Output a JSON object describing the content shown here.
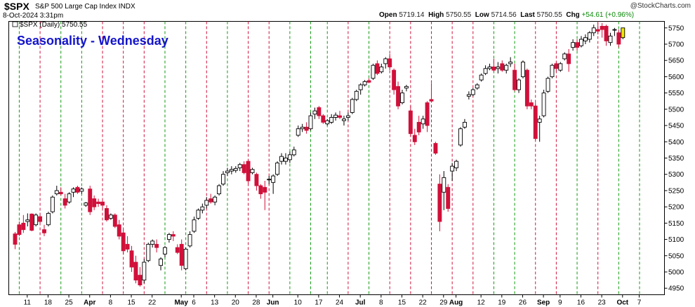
{
  "header": {
    "ticker": "$SPX",
    "name": "S&P 500 Large Cap Index  INDX",
    "date": "8-Oct-2024 3:31pm",
    "open_label": "Open",
    "open": "5719.14",
    "high_label": "High",
    "high": "5750.55",
    "low_label": "Low",
    "low": "5714.56",
    "last_label": "Last",
    "last": "5750.55",
    "chg_label": "Chg",
    "chg": "+54.61 (+0.96%)",
    "logo": "@StockCharts.com",
    "legend": "$SPX (Daily) 5750.55"
  },
  "chart_data": {
    "type": "candlestick",
    "title": "Seasonality - Wednesday",
    "y_range": [
      4930,
      5770
    ],
    "y_ticks": [
      4950,
      5000,
      5050,
      5100,
      5150,
      5200,
      5250,
      5300,
      5350,
      5400,
      5450,
      5500,
      5550,
      5600,
      5650,
      5700,
      5750
    ],
    "x_ticks": [
      {
        "label": "11",
        "i": 3,
        "bold": false
      },
      {
        "label": "18",
        "i": 8,
        "bold": false
      },
      {
        "label": "25",
        "i": 13,
        "bold": false
      },
      {
        "label": "Apr",
        "i": 18,
        "bold": true
      },
      {
        "label": "8",
        "i": 23,
        "bold": false
      },
      {
        "label": "15",
        "i": 28,
        "bold": false
      },
      {
        "label": "22",
        "i": 33,
        "bold": false
      },
      {
        "label": "May",
        "i": 40,
        "bold": true
      },
      {
        "label": "6",
        "i": 43,
        "bold": false
      },
      {
        "label": "13",
        "i": 48,
        "bold": false
      },
      {
        "label": "20",
        "i": 53,
        "bold": false
      },
      {
        "label": "28",
        "i": 58,
        "bold": false
      },
      {
        "label": "Jun",
        "i": 62,
        "bold": true
      },
      {
        "label": "10",
        "i": 68,
        "bold": false
      },
      {
        "label": "17",
        "i": 73,
        "bold": false
      },
      {
        "label": "24",
        "i": 78,
        "bold": false
      },
      {
        "label": "Jul",
        "i": 83,
        "bold": true
      },
      {
        "label": "8",
        "i": 88,
        "bold": false
      },
      {
        "label": "15",
        "i": 93,
        "bold": false
      },
      {
        "label": "22",
        "i": 98,
        "bold": false
      },
      {
        "label": "29",
        "i": 103,
        "bold": false
      },
      {
        "label": "Aug",
        "i": 106,
        "bold": true
      },
      {
        "label": "12",
        "i": 112,
        "bold": false
      },
      {
        "label": "19",
        "i": 117,
        "bold": false
      },
      {
        "label": "26",
        "i": 122,
        "bold": false
      },
      {
        "label": "Sep",
        "i": 127,
        "bold": true
      },
      {
        "label": "9",
        "i": 131,
        "bold": false
      },
      {
        "label": "16",
        "i": 136,
        "bold": false
      },
      {
        "label": "23",
        "i": 141,
        "bold": false
      },
      {
        "label": "Oct",
        "i": 146,
        "bold": true
      },
      {
        "label": "7",
        "i": 150,
        "bold": false
      }
    ],
    "wednesday_lines": [
      {
        "i": 1,
        "color": "green"
      },
      {
        "i": 6,
        "color": "red"
      },
      {
        "i": 11,
        "color": "green"
      },
      {
        "i": 16,
        "color": "green"
      },
      {
        "i": 21,
        "color": "red"
      },
      {
        "i": 26,
        "color": "red"
      },
      {
        "i": 31,
        "color": "red"
      },
      {
        "i": 36,
        "color": "green"
      },
      {
        "i": 41,
        "color": "green"
      },
      {
        "i": 46,
        "color": "red"
      },
      {
        "i": 51,
        "color": "green"
      },
      {
        "i": 56,
        "color": "red"
      },
      {
        "i": 61,
        "color": "red"
      },
      {
        "i": 66,
        "color": "green"
      },
      {
        "i": 71,
        "color": "green"
      },
      {
        "i": 75,
        "color": "green"
      },
      {
        "i": 80,
        "color": "red"
      },
      {
        "i": 85,
        "color": "green"
      },
      {
        "i": 90,
        "color": "red"
      },
      {
        "i": 95,
        "color": "red"
      },
      {
        "i": 100,
        "color": "red"
      },
      {
        "i": 105,
        "color": "red"
      },
      {
        "i": 110,
        "color": "red"
      },
      {
        "i": 115,
        "color": "green"
      },
      {
        "i": 120,
        "color": "green"
      },
      {
        "i": 125,
        "color": "red"
      },
      {
        "i": 130,
        "color": "red"
      },
      {
        "i": 135,
        "color": "green"
      },
      {
        "i": 140,
        "color": "red"
      },
      {
        "i": 145,
        "color": "green"
      },
      {
        "i": 150,
        "color": "green"
      }
    ],
    "candles": [
      {
        "o": 5117,
        "h": 5123,
        "l": 5070,
        "c": 5085
      },
      {
        "o": 5145,
        "h": 5155,
        "l": 5110,
        "c": 5115
      },
      {
        "o": 5150,
        "h": 5175,
        "l": 5120,
        "c": 5130
      },
      {
        "o": 5155,
        "h": 5180,
        "l": 5140,
        "c": 5160
      },
      {
        "o": 5178,
        "h": 5180,
        "l": 5125,
        "c": 5128
      },
      {
        "o": 5145,
        "h": 5180,
        "l": 5140,
        "c": 5175
      },
      {
        "o": 5170,
        "h": 5175,
        "l": 5150,
        "c": 5155
      },
      {
        "o": 5130,
        "h": 5145,
        "l": 5110,
        "c": 5120
      },
      {
        "o": 5145,
        "h": 5185,
        "l": 5140,
        "c": 5180
      },
      {
        "o": 5185,
        "h": 5235,
        "l": 5180,
        "c": 5230
      },
      {
        "o": 5240,
        "h": 5265,
        "l": 5235,
        "c": 5250
      },
      {
        "o": 5245,
        "h": 5260,
        "l": 5235,
        "c": 5240
      },
      {
        "o": 5225,
        "h": 5240,
        "l": 5195,
        "c": 5205
      },
      {
        "o": 5215,
        "h": 5245,
        "l": 5210,
        "c": 5240
      },
      {
        "o": 5245,
        "h": 5260,
        "l": 5230,
        "c": 5255
      },
      {
        "o": 5260,
        "h": 5265,
        "l": 5240,
        "c": 5245
      },
      {
        "o": 5248,
        "h": 5260,
        "l": 5240,
        "c": 5255
      },
      {
        "o": 5205,
        "h": 5215,
        "l": 5200,
        "c": 5212
      },
      {
        "o": 5255,
        "h": 5265,
        "l": 5175,
        "c": 5185
      },
      {
        "o": 5225,
        "h": 5235,
        "l": 5190,
        "c": 5200
      },
      {
        "o": 5215,
        "h": 5225,
        "l": 5200,
        "c": 5210
      },
      {
        "o": 5215,
        "h": 5220,
        "l": 5190,
        "c": 5205
      },
      {
        "o": 5195,
        "h": 5205,
        "l": 5155,
        "c": 5160
      },
      {
        "o": 5165,
        "h": 5180,
        "l": 5160,
        "c": 5175
      },
      {
        "o": 5175,
        "h": 5180,
        "l": 5135,
        "c": 5140
      },
      {
        "o": 5145,
        "h": 5160,
        "l": 5100,
        "c": 5110
      },
      {
        "o": 5120,
        "h": 5130,
        "l": 5055,
        "c": 5065
      },
      {
        "o": 5085,
        "h": 5110,
        "l": 5060,
        "c": 5070
      },
      {
        "o": 5065,
        "h": 5080,
        "l": 5000,
        "c": 5015
      },
      {
        "o": 5030,
        "h": 5050,
        "l": 4965,
        "c": 4975
      },
      {
        "o": 4990,
        "h": 5015,
        "l": 4955,
        "c": 4960
      },
      {
        "o": 4975,
        "h": 5040,
        "l": 4965,
        "c": 5030
      },
      {
        "o": 5035,
        "h": 5090,
        "l": 5030,
        "c": 5085
      },
      {
        "o": 5085,
        "h": 5100,
        "l": 5075,
        "c": 5095
      },
      {
        "o": 5085,
        "h": 5100,
        "l": 5060,
        "c": 5075
      },
      {
        "o": 5020,
        "h": 5045,
        "l": 5005,
        "c": 5040
      },
      {
        "o": 5055,
        "h": 5080,
        "l": 5045,
        "c": 5075
      },
      {
        "o": 5100,
        "h": 5120,
        "l": 5090,
        "c": 5115
      },
      {
        "o": 5115,
        "h": 5125,
        "l": 5095,
        "c": 5110
      },
      {
        "o": 5075,
        "h": 5085,
        "l": 5055,
        "c": 5060
      },
      {
        "o": 5085,
        "h": 5100,
        "l": 5005,
        "c": 5020
      },
      {
        "o": 5010,
        "h": 5075,
        "l": 5005,
        "c": 5070
      },
      {
        "o": 5080,
        "h": 5125,
        "l": 5075,
        "c": 5115
      },
      {
        "o": 5125,
        "h": 5170,
        "l": 5120,
        "c": 5160
      },
      {
        "o": 5165,
        "h": 5195,
        "l": 5160,
        "c": 5190
      },
      {
        "o": 5190,
        "h": 5210,
        "l": 5180,
        "c": 5200
      },
      {
        "o": 5205,
        "h": 5230,
        "l": 5195,
        "c": 5220
      },
      {
        "o": 5225,
        "h": 5240,
        "l": 5210,
        "c": 5215
      },
      {
        "o": 5215,
        "h": 5235,
        "l": 5205,
        "c": 5230
      },
      {
        "o": 5240,
        "h": 5270,
        "l": 5235,
        "c": 5265
      },
      {
        "o": 5270,
        "h": 5310,
        "l": 5265,
        "c": 5300
      },
      {
        "o": 5305,
        "h": 5320,
        "l": 5295,
        "c": 5310
      },
      {
        "o": 5310,
        "h": 5325,
        "l": 5300,
        "c": 5315
      },
      {
        "o": 5312,
        "h": 5325,
        "l": 5305,
        "c": 5318
      },
      {
        "o": 5320,
        "h": 5335,
        "l": 5310,
        "c": 5330
      },
      {
        "o": 5330,
        "h": 5340,
        "l": 5300,
        "c": 5305
      },
      {
        "o": 5340,
        "h": 5345,
        "l": 5270,
        "c": 5280
      },
      {
        "o": 5305,
        "h": 5320,
        "l": 5300,
        "c": 5315
      },
      {
        "o": 5300,
        "h": 5305,
        "l": 5250,
        "c": 5265
      },
      {
        "o": 5265,
        "h": 5270,
        "l": 5225,
        "c": 5240
      },
      {
        "o": 5260,
        "h": 5280,
        "l": 5190,
        "c": 5245
      },
      {
        "o": 5285,
        "h": 5295,
        "l": 5270,
        "c": 5285
      },
      {
        "o": 5275,
        "h": 5300,
        "l": 5240,
        "c": 5295
      },
      {
        "o": 5300,
        "h": 5340,
        "l": 5295,
        "c": 5335
      },
      {
        "o": 5340,
        "h": 5365,
        "l": 5330,
        "c": 5355
      },
      {
        "o": 5340,
        "h": 5365,
        "l": 5330,
        "c": 5350
      },
      {
        "o": 5345,
        "h": 5370,
        "l": 5335,
        "c": 5360
      },
      {
        "o": 5360,
        "h": 5385,
        "l": 5355,
        "c": 5375
      },
      {
        "o": 5420,
        "h": 5450,
        "l": 5415,
        "c": 5440
      },
      {
        "o": 5440,
        "h": 5455,
        "l": 5430,
        "c": 5445
      },
      {
        "o": 5445,
        "h": 5460,
        "l": 5425,
        "c": 5435
      },
      {
        "o": 5440,
        "h": 5490,
        "l": 5435,
        "c": 5480
      },
      {
        "o": 5485,
        "h": 5505,
        "l": 5470,
        "c": 5495
      },
      {
        "o": 5505,
        "h": 5510,
        "l": 5470,
        "c": 5480
      },
      {
        "o": 5480,
        "h": 5485,
        "l": 5455,
        "c": 5460
      },
      {
        "o": 5455,
        "h": 5470,
        "l": 5450,
        "c": 5465
      },
      {
        "o": 5460,
        "h": 5485,
        "l": 5455,
        "c": 5475
      },
      {
        "o": 5475,
        "h": 5490,
        "l": 5465,
        "c": 5482
      },
      {
        "o": 5480,
        "h": 5495,
        "l": 5470,
        "c": 5475
      },
      {
        "o": 5465,
        "h": 5480,
        "l": 5450,
        "c": 5470
      },
      {
        "o": 5475,
        "h": 5490,
        "l": 5465,
        "c": 5480
      },
      {
        "o": 5490,
        "h": 5535,
        "l": 5485,
        "c": 5530
      },
      {
        "o": 5530,
        "h": 5560,
        "l": 5525,
        "c": 5555
      },
      {
        "o": 5560,
        "h": 5580,
        "l": 5545,
        "c": 5575
      },
      {
        "o": 5575,
        "h": 5590,
        "l": 5570,
        "c": 5585
      },
      {
        "o": 5588,
        "h": 5595,
        "l": 5580,
        "c": 5583
      },
      {
        "o": 5595,
        "h": 5640,
        "l": 5590,
        "c": 5635
      },
      {
        "o": 5640,
        "h": 5650,
        "l": 5605,
        "c": 5610
      },
      {
        "o": 5615,
        "h": 5640,
        "l": 5610,
        "c": 5630
      },
      {
        "o": 5640,
        "h": 5660,
        "l": 5625,
        "c": 5655
      },
      {
        "o": 5655,
        "h": 5670,
        "l": 5620,
        "c": 5630
      },
      {
        "o": 5620,
        "h": 5625,
        "l": 5545,
        "c": 5560
      },
      {
        "o": 5570,
        "h": 5585,
        "l": 5500,
        "c": 5510
      },
      {
        "o": 5520,
        "h": 5560,
        "l": 5515,
        "c": 5550
      },
      {
        "o": 5565,
        "h": 5575,
        "l": 5555,
        "c": 5570
      },
      {
        "o": 5495,
        "h": 5510,
        "l": 5415,
        "c": 5425
      },
      {
        "o": 5420,
        "h": 5440,
        "l": 5390,
        "c": 5400
      },
      {
        "o": 5460,
        "h": 5480,
        "l": 5420,
        "c": 5430
      },
      {
        "o": 5455,
        "h": 5480,
        "l": 5440,
        "c": 5470
      },
      {
        "o": 5520,
        "h": 5525,
        "l": 5430,
        "c": 5450
      },
      {
        "o": 5530,
        "h": 5580,
        "l": 5525,
        "c": 5525
      },
      {
        "o": 5395,
        "h": 5400,
        "l": 5360,
        "c": 5365
      },
      {
        "o": 5270,
        "h": 5300,
        "l": 5125,
        "c": 5155
      },
      {
        "o": 5245,
        "h": 5310,
        "l": 5190,
        "c": 5290
      },
      {
        "o": 5260,
        "h": 5270,
        "l": 5185,
        "c": 5195
      },
      {
        "o": 5310,
        "h": 5335,
        "l": 5280,
        "c": 5325
      },
      {
        "o": 5320,
        "h": 5345,
        "l": 5310,
        "c": 5340
      },
      {
        "o": 5390,
        "h": 5445,
        "l": 5385,
        "c": 5440
      },
      {
        "o": 5445,
        "h": 5470,
        "l": 5440,
        "c": 5460
      },
      {
        "o": 5540,
        "h": 5555,
        "l": 5530,
        "c": 5545
      },
      {
        "o": 5545,
        "h": 5565,
        "l": 5540,
        "c": 5560
      },
      {
        "o": 5565,
        "h": 5580,
        "l": 5560,
        "c": 5575
      },
      {
        "o": 5590,
        "h": 5610,
        "l": 5585,
        "c": 5605
      },
      {
        "o": 5610,
        "h": 5635,
        "l": 5605,
        "c": 5625
      },
      {
        "o": 5625,
        "h": 5640,
        "l": 5620,
        "c": 5630
      },
      {
        "o": 5630,
        "h": 5655,
        "l": 5615,
        "c": 5620
      },
      {
        "o": 5625,
        "h": 5645,
        "l": 5610,
        "c": 5630
      },
      {
        "o": 5640,
        "h": 5650,
        "l": 5615,
        "c": 5620
      },
      {
        "o": 5620,
        "h": 5640,
        "l": 5610,
        "c": 5635
      },
      {
        "o": 5640,
        "h": 5660,
        "l": 5630,
        "c": 5645
      },
      {
        "o": 5620,
        "h": 5640,
        "l": 5555,
        "c": 5560
      },
      {
        "o": 5560,
        "h": 5595,
        "l": 5550,
        "c": 5590
      },
      {
        "o": 5600,
        "h": 5650,
        "l": 5595,
        "c": 5645
      },
      {
        "o": 5620,
        "h": 5625,
        "l": 5500,
        "c": 5510
      },
      {
        "o": 5520,
        "h": 5530,
        "l": 5500,
        "c": 5510
      },
      {
        "o": 5510,
        "h": 5520,
        "l": 5405,
        "c": 5410
      },
      {
        "o": 5460,
        "h": 5480,
        "l": 5400,
        "c": 5470
      },
      {
        "o": 5480,
        "h": 5560,
        "l": 5475,
        "c": 5550
      },
      {
        "o": 5555,
        "h": 5600,
        "l": 5550,
        "c": 5595
      },
      {
        "o": 5600,
        "h": 5640,
        "l": 5595,
        "c": 5635
      },
      {
        "o": 5640,
        "h": 5645,
        "l": 5615,
        "c": 5625
      },
      {
        "o": 5620,
        "h": 5645,
        "l": 5615,
        "c": 5640
      },
      {
        "o": 5655,
        "h": 5675,
        "l": 5650,
        "c": 5670
      },
      {
        "o": 5670,
        "h": 5685,
        "l": 5615,
        "c": 5640
      },
      {
        "o": 5690,
        "h": 5715,
        "l": 5680,
        "c": 5705
      },
      {
        "o": 5705,
        "h": 5715,
        "l": 5680,
        "c": 5690
      },
      {
        "o": 5695,
        "h": 5725,
        "l": 5690,
        "c": 5715
      },
      {
        "o": 5710,
        "h": 5730,
        "l": 5700,
        "c": 5720
      },
      {
        "o": 5715,
        "h": 5740,
        "l": 5705,
        "c": 5735
      },
      {
        "o": 5735,
        "h": 5760,
        "l": 5725,
        "c": 5750
      },
      {
        "o": 5745,
        "h": 5765,
        "l": 5730,
        "c": 5740
      },
      {
        "o": 5755,
        "h": 5765,
        "l": 5720,
        "c": 5745
      },
      {
        "o": 5755,
        "h": 5760,
        "l": 5695,
        "c": 5710
      },
      {
        "o": 5705,
        "h": 5735,
        "l": 5695,
        "c": 5725
      },
      {
        "o": 5745,
        "h": 5750,
        "l": 5725,
        "c": 5745
      },
      {
        "o": 5735,
        "h": 5745,
        "l": 5690,
        "c": 5700
      },
      {
        "o": 5720,
        "h": 5750,
        "l": 5715,
        "c": 5750
      }
    ]
  },
  "colors": {
    "up_fill": "#ffffff",
    "up_stroke": "#000000",
    "down_fill": "#d0103a",
    "black_candle": "#000000",
    "last_candle": "#f2e600",
    "green_line": "#119911",
    "red_line": "#d0103a",
    "title": "#1414cc",
    "chg": "#0a8a0a"
  }
}
